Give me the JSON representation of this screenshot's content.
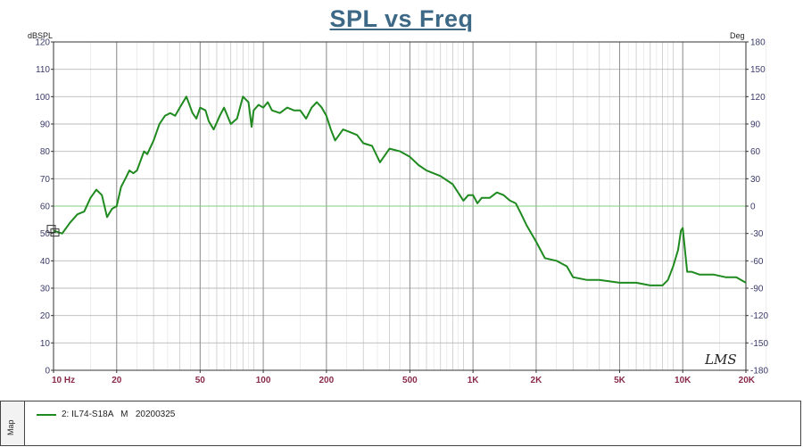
{
  "chart_data": {
    "type": "line",
    "title": "SPL vs Freq",
    "ylabel_left": "dBSPL",
    "ylabel_right": "Deg",
    "x_scale": "log",
    "xlim": [
      10,
      20000
    ],
    "ylim_left": [
      0,
      120
    ],
    "ylim_right": [
      -180,
      180
    ],
    "x_ticks": [
      {
        "value": 10,
        "label": "10 Hz"
      },
      {
        "value": 20,
        "label": "20"
      },
      {
        "value": 50,
        "label": "50"
      },
      {
        "value": 100,
        "label": "100"
      },
      {
        "value": 200,
        "label": "200"
      },
      {
        "value": 500,
        "label": "500"
      },
      {
        "value": 1000,
        "label": "1K"
      },
      {
        "value": 2000,
        "label": "2K"
      },
      {
        "value": 5000,
        "label": "5K"
      },
      {
        "value": 10000,
        "label": "10K"
      },
      {
        "value": 20000,
        "label": "20K"
      }
    ],
    "y_ticks_left": [
      "0",
      "10",
      "20",
      "30",
      "40",
      "50",
      "60",
      "70",
      "80",
      "90",
      "100",
      "110",
      "120"
    ],
    "y_ticks_right": [
      "-180",
      "-150",
      "-120",
      "-90",
      "-60",
      "-30",
      "0",
      "30",
      "60",
      "90",
      "120",
      "150",
      "180"
    ],
    "grid": true,
    "annotation": "LMS",
    "series": [
      {
        "name": "2: IL74-S18A   M   20200325",
        "color": "#1f8a1f",
        "x": [
          10,
          11,
          12,
          13,
          14,
          15,
          16,
          17,
          18,
          19,
          20,
          21,
          22,
          23,
          24,
          25,
          27,
          28,
          30,
          32,
          34,
          36,
          38,
          40,
          43,
          46,
          48,
          50,
          53,
          55,
          58,
          62,
          65,
          70,
          75,
          80,
          85,
          88,
          90,
          95,
          100,
          105,
          110,
          120,
          130,
          140,
          150,
          160,
          170,
          180,
          190,
          200,
          210,
          220,
          240,
          260,
          280,
          300,
          330,
          360,
          400,
          450,
          500,
          550,
          600,
          700,
          800,
          900,
          950,
          1000,
          1050,
          1100,
          1200,
          1300,
          1400,
          1500,
          1600,
          1700,
          1800,
          2000,
          2200,
          2500,
          2800,
          3000,
          3500,
          4000,
          5000,
          6000,
          7000,
          8000,
          8500,
          9000,
          9500,
          9800,
          10000,
          10500,
          11000,
          12000,
          14000,
          16000,
          18000,
          20000
        ],
        "y": [
          51,
          50,
          54,
          57,
          58,
          63,
          66,
          64,
          56,
          59,
          60,
          67,
          70,
          73,
          72,
          73,
          80,
          79,
          84,
          90,
          93,
          94,
          93,
          96,
          100,
          94,
          92,
          96,
          95,
          91,
          88,
          93,
          96,
          90,
          92,
          100,
          98,
          89,
          95,
          97,
          96,
          98,
          95,
          94,
          96,
          95,
          95,
          92,
          96,
          98,
          96,
          93,
          88,
          84,
          88,
          87,
          86,
          83,
          82,
          76,
          81,
          80,
          78,
          75,
          73,
          71,
          68,
          62,
          64,
          64,
          61,
          63,
          63,
          65,
          64,
          62,
          61,
          57,
          53,
          47,
          41,
          40,
          38,
          34,
          33,
          33,
          32,
          32,
          31,
          31,
          33,
          38,
          44,
          51,
          52,
          36,
          36,
          35,
          35,
          34,
          34,
          32
        ]
      }
    ]
  },
  "legend": {
    "map_label": "Map",
    "entry_text": "2: IL74-S18A   M   20200325"
  }
}
